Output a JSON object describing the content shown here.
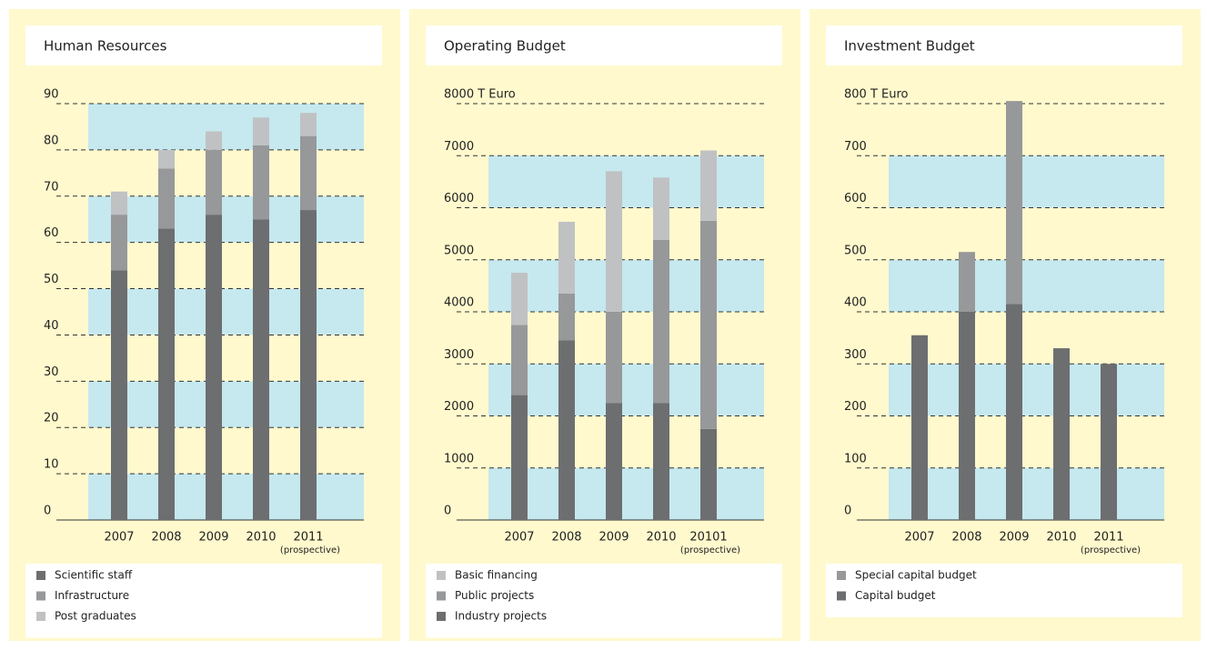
{
  "chart_data": [
    {
      "type": "bar",
      "stacked": true,
      "title": "Human Resources",
      "categories": [
        "2007",
        "2008",
        "2009",
        "2010",
        "2011"
      ],
      "annotations": [
        "(prospective)"
      ],
      "series": [
        {
          "name": "Scientific staff",
          "color": "#6d6e70",
          "values": [
            54,
            63,
            66,
            65,
            67
          ]
        },
        {
          "name": "Infrastructure",
          "color": "#97989a",
          "values": [
            12,
            13,
            14,
            16,
            16
          ]
        },
        {
          "name": "Post graduates",
          "color": "#c0c1c3",
          "values": [
            5,
            4,
            4,
            6,
            5
          ]
        }
      ],
      "ylim": [
        0,
        90
      ],
      "yticks": [
        0,
        10,
        20,
        30,
        40,
        50,
        60,
        70,
        80,
        90
      ],
      "grid": true,
      "legend_reversed": false
    },
    {
      "type": "bar",
      "stacked": true,
      "title": "Operating Budget",
      "categories": [
        "2007",
        "2008",
        "2009",
        "2010",
        "20101"
      ],
      "annotations": [
        "(prospective)"
      ],
      "series": [
        {
          "name": "Industry projects",
          "color": "#6d6e70",
          "values": [
            2400,
            3450,
            2250,
            2250,
            1750
          ]
        },
        {
          "name": "Public projects",
          "color": "#97989a",
          "values": [
            1350,
            900,
            1750,
            3130,
            4000
          ]
        },
        {
          "name": "Basic financing",
          "color": "#c0c1c3",
          "values": [
            1000,
            1380,
            2700,
            1200,
            1350
          ]
        }
      ],
      "ylim": [
        0,
        8000
      ],
      "yticks": [
        0,
        1000,
        2000,
        3000,
        4000,
        5000,
        6000,
        7000,
        {
          "value": 8000,
          "label": "8000 T Euro"
        }
      ],
      "grid": true,
      "legend_reversed": true
    },
    {
      "type": "bar",
      "stacked": true,
      "title": "Investment Budget",
      "categories": [
        "2007",
        "2008",
        "2009",
        "2010",
        "2011"
      ],
      "annotations": [
        "(prospective)"
      ],
      "series": [
        {
          "name": "Capital budget",
          "color": "#6d6e70",
          "values": [
            355,
            400,
            415,
            330,
            300
          ]
        },
        {
          "name": "Special capital budget",
          "color": "#97989a",
          "values": [
            null,
            115,
            390,
            null,
            null
          ]
        }
      ],
      "ylim": [
        0,
        800
      ],
      "yticks": [
        0,
        100,
        200,
        300,
        400,
        500,
        600,
        700,
        {
          "value": 800,
          "label": "800 T Euro"
        }
      ],
      "grid": true,
      "legend_reversed": true
    }
  ]
}
